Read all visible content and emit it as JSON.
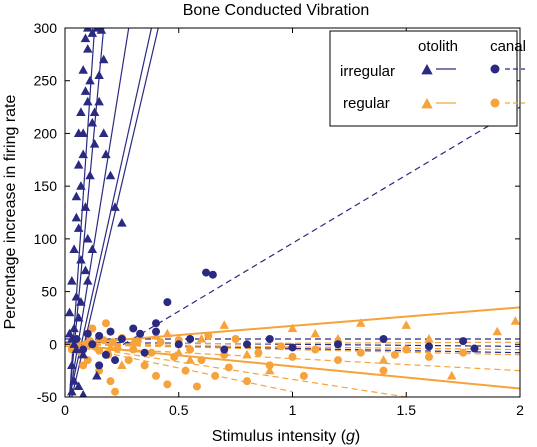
{
  "chart_data": {
    "type": "scatter",
    "title": "Bone Conducted Vibration",
    "xlabel_main": "Stimulus intensity (",
    "xlabel_var": "g",
    "xlabel_end": ")",
    "ylabel": "Percentage increase in firing rate",
    "xlim": [
      0,
      2
    ],
    "ylim": [
      -50,
      300
    ],
    "xticks": [
      0,
      0.5,
      1,
      1.5,
      2
    ],
    "xtick_labels": [
      "0",
      "0.5",
      "1",
      "1.5",
      "2"
    ],
    "yticks": [
      -50,
      0,
      50,
      100,
      150,
      200,
      250,
      300
    ],
    "ytick_labels": [
      "-50",
      "0",
      "50",
      "100",
      "150",
      "200",
      "250",
      "300"
    ],
    "grid": false,
    "legend": {
      "placement": "top-right",
      "col_otolith": "otolith",
      "col_canal": "canal",
      "row_irregular": "irregular",
      "row_regular": "regular"
    },
    "colors": {
      "irregular": "#2a2a82",
      "regular": "#f5a33a"
    },
    "series": [
      {
        "group": "irregular",
        "organ": "otolith",
        "marker": "triangle",
        "line": "solid",
        "points": [
          [
            0.02,
            10
          ],
          [
            0.02,
            30
          ],
          [
            0.03,
            60
          ],
          [
            0.03,
            -20
          ],
          [
            0.04,
            90
          ],
          [
            0.04,
            -35
          ],
          [
            0.05,
            120
          ],
          [
            0.05,
            140
          ],
          [
            0.06,
            170
          ],
          [
            0.06,
            200
          ],
          [
            0.07,
            220
          ],
          [
            0.07,
            150
          ],
          [
            0.08,
            260
          ],
          [
            0.08,
            180
          ],
          [
            0.09,
            290
          ],
          [
            0.09,
            240
          ],
          [
            0.1,
            280
          ],
          [
            0.1,
            300
          ],
          [
            0.11,
            250
          ],
          [
            0.12,
            295
          ],
          [
            0.12,
            210
          ],
          [
            0.13,
            190
          ],
          [
            0.14,
            300
          ],
          [
            0.15,
            230
          ],
          [
            0.16,
            298
          ],
          [
            0.17,
            200
          ],
          [
            0.18,
            180
          ],
          [
            0.2,
            160
          ],
          [
            0.22,
            130
          ],
          [
            0.25,
            115
          ],
          [
            0.03,
            5
          ],
          [
            0.04,
            15
          ],
          [
            0.05,
            -5
          ],
          [
            0.06,
            25
          ],
          [
            0.07,
            40
          ],
          [
            0.08,
            -10
          ],
          [
            0.09,
            70
          ],
          [
            0.1,
            100
          ],
          [
            0.04,
            0
          ],
          [
            0.06,
            -40
          ],
          [
            0.08,
            -48
          ],
          [
            0.05,
            45
          ],
          [
            0.07,
            80
          ],
          [
            0.09,
            130
          ],
          [
            0.11,
            160
          ],
          [
            0.13,
            220
          ],
          [
            0.15,
            255
          ],
          [
            0.17,
            270
          ],
          [
            0.1,
            60
          ],
          [
            0.12,
            90
          ],
          [
            0.14,
            -30
          ],
          [
            0.03,
            -45
          ],
          [
            0.06,
            110
          ],
          [
            0.08,
            200
          ],
          [
            0.1,
            230
          ]
        ],
        "fit_lines": [
          [
            [
              0.02,
              -50
            ],
            [
              0.17,
              300
            ]
          ],
          [
            [
              0.02,
              -50
            ],
            [
              0.28,
              300
            ]
          ],
          [
            [
              0.02,
              -50
            ],
            [
              0.38,
              300
            ]
          ],
          [
            [
              0.03,
              -50
            ],
            [
              0.41,
              300
            ]
          ],
          [
            [
              0.02,
              -50
            ],
            [
              0.13,
              300
            ]
          ]
        ]
      },
      {
        "group": "irregular",
        "organ": "canal",
        "marker": "circle",
        "line": "dashed",
        "points": [
          [
            0.05,
            5
          ],
          [
            0.08,
            -5
          ],
          [
            0.1,
            10
          ],
          [
            0.12,
            0
          ],
          [
            0.15,
            8
          ],
          [
            0.18,
            -10
          ],
          [
            0.2,
            12
          ],
          [
            0.25,
            5
          ],
          [
            0.3,
            15
          ],
          [
            0.33,
            10
          ],
          [
            0.4,
            20
          ],
          [
            0.45,
            40
          ],
          [
            0.5,
            0
          ],
          [
            0.55,
            5
          ],
          [
            0.62,
            68
          ],
          [
            0.65,
            66
          ],
          [
            0.7,
            -5
          ],
          [
            0.8,
            0
          ],
          [
            0.9,
            5
          ],
          [
            1.0,
            -3
          ],
          [
            1.2,
            0
          ],
          [
            1.4,
            5
          ],
          [
            1.6,
            -2
          ],
          [
            1.75,
            3
          ],
          [
            1.8,
            -4
          ],
          [
            0.15,
            -20
          ],
          [
            0.22,
            -15
          ],
          [
            0.35,
            -8
          ],
          [
            0.4,
            12
          ]
        ],
        "fit_lines": [
          [
            [
              0.18,
              -10
            ],
            [
              2.0,
              225
            ]
          ],
          [
            [
              0.0,
              5
            ],
            [
              2.0,
              5
            ]
          ],
          [
            [
              0.0,
              2
            ],
            [
              2.0,
              -2
            ]
          ],
          [
            [
              0.0,
              0
            ],
            [
              2.0,
              -8
            ]
          ]
        ]
      },
      {
        "group": "regular",
        "organ": "otolith",
        "marker": "triangle",
        "line": "solid",
        "points": [
          [
            0.05,
            -5
          ],
          [
            0.1,
            0
          ],
          [
            0.15,
            5
          ],
          [
            0.2,
            -3
          ],
          [
            0.3,
            2
          ],
          [
            0.4,
            8
          ],
          [
            0.5,
            -8
          ],
          [
            0.6,
            5
          ],
          [
            0.8,
            -10
          ],
          [
            1.0,
            15
          ],
          [
            1.2,
            5
          ],
          [
            1.4,
            -15
          ],
          [
            1.5,
            18
          ],
          [
            1.7,
            -30
          ],
          [
            1.9,
            12
          ],
          [
            1.98,
            22
          ],
          [
            0.25,
            -20
          ],
          [
            0.45,
            10
          ],
          [
            0.55,
            -15
          ],
          [
            0.7,
            18
          ],
          [
            0.9,
            -25
          ],
          [
            1.1,
            10
          ],
          [
            1.3,
            20
          ],
          [
            1.6,
            5
          ]
        ],
        "fit_lines": [
          [
            [
              0.0,
              0
            ],
            [
              2.0,
              35
            ]
          ],
          [
            [
              0.0,
              0
            ],
            [
              2.0,
              -42
            ]
          ]
        ]
      },
      {
        "group": "regular",
        "organ": "canal",
        "marker": "circle",
        "line": "dashed",
        "points": [
          [
            0.03,
            -5
          ],
          [
            0.05,
            5
          ],
          [
            0.07,
            -8
          ],
          [
            0.09,
            0
          ],
          [
            0.11,
            3
          ],
          [
            0.13,
            -2
          ],
          [
            0.15,
            -6
          ],
          [
            0.17,
            4
          ],
          [
            0.19,
            -10
          ],
          [
            0.21,
            2
          ],
          [
            0.23,
            -4
          ],
          [
            0.25,
            6
          ],
          [
            0.28,
            -15
          ],
          [
            0.3,
            -5
          ],
          [
            0.32,
            3
          ],
          [
            0.35,
            -20
          ],
          [
            0.38,
            -8
          ],
          [
            0.4,
            -30
          ],
          [
            0.42,
            2
          ],
          [
            0.45,
            -38
          ],
          [
            0.48,
            -12
          ],
          [
            0.5,
            4
          ],
          [
            0.53,
            -25
          ],
          [
            0.55,
            -5
          ],
          [
            0.58,
            -40
          ],
          [
            0.6,
            -15
          ],
          [
            0.63,
            8
          ],
          [
            0.66,
            -30
          ],
          [
            0.7,
            -10
          ],
          [
            0.72,
            -22
          ],
          [
            0.75,
            5
          ],
          [
            0.8,
            -35
          ],
          [
            0.85,
            -8
          ],
          [
            0.9,
            -20
          ],
          [
            0.95,
            -2
          ],
          [
            1.0,
            -12
          ],
          [
            1.05,
            -30
          ],
          [
            1.1,
            -5
          ],
          [
            1.2,
            -15
          ],
          [
            1.3,
            -8
          ],
          [
            1.4,
            -25
          ],
          [
            1.45,
            -10
          ],
          [
            1.5,
            -5
          ],
          [
            1.6,
            -12
          ],
          [
            1.75,
            -8
          ],
          [
            0.15,
            -25
          ],
          [
            0.2,
            -35
          ],
          [
            0.1,
            -15
          ],
          [
            0.08,
            -20
          ],
          [
            0.12,
            15
          ],
          [
            0.18,
            20
          ],
          [
            0.22,
            -45
          ]
        ],
        "fit_lines": [
          [
            [
              0.0,
              0
            ],
            [
              2.0,
              -10
            ]
          ],
          [
            [
              0.0,
              0
            ],
            [
              2.0,
              -5
            ]
          ],
          [
            [
              0.0,
              -2
            ],
            [
              2.0,
              -25
            ]
          ],
          [
            [
              0.0,
              0
            ],
            [
              1.5,
              -50
            ]
          ],
          [
            [
              0.0,
              0
            ],
            [
              1.0,
              -45
            ]
          ],
          [
            [
              0.0,
              0
            ],
            [
              2.0,
              2
            ]
          ]
        ]
      }
    ]
  }
}
